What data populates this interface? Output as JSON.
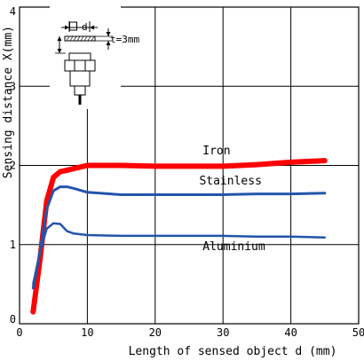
{
  "chart_data": {
    "type": "line",
    "title": "",
    "xlabel": "Length of sensed object d (mm)",
    "ylabel": "Sensing distance X(mm)",
    "xlim": [
      0,
      50
    ],
    "ylim": [
      0,
      4
    ],
    "xticks": [
      0,
      10,
      20,
      30,
      40,
      50
    ],
    "yticks": [
      0,
      1,
      2,
      3,
      4
    ],
    "xtick_labels": [
      "0",
      "10",
      "20",
      "30",
      "40",
      "50"
    ],
    "ytick_labels": [
      "0",
      "1",
      "2",
      "3",
      "4"
    ],
    "grid": true,
    "series": [
      {
        "name": "Iron",
        "color": "#ff0000",
        "points": [
          [
            2,
            0.15
          ],
          [
            3,
            0.8
          ],
          [
            4,
            1.55
          ],
          [
            5,
            1.85
          ],
          [
            6,
            1.92
          ],
          [
            7,
            1.94
          ],
          [
            8,
            1.96
          ],
          [
            10,
            2.0
          ],
          [
            15,
            2.0
          ],
          [
            20,
            1.99
          ],
          [
            25,
            1.99
          ],
          [
            30,
            1.99
          ],
          [
            35,
            2.01
          ],
          [
            40,
            2.04
          ],
          [
            45,
            2.06
          ]
        ]
      },
      {
        "name": "Stainless",
        "color": "#2255aa",
        "points": [
          [
            2,
            0.45
          ],
          [
            3,
            0.9
          ],
          [
            4,
            1.45
          ],
          [
            5,
            1.68
          ],
          [
            6,
            1.73
          ],
          [
            7,
            1.73
          ],
          [
            8,
            1.71
          ],
          [
            10,
            1.66
          ],
          [
            15,
            1.63
          ],
          [
            20,
            1.63
          ],
          [
            25,
            1.63
          ],
          [
            30,
            1.63
          ],
          [
            35,
            1.64
          ],
          [
            40,
            1.64
          ],
          [
            45,
            1.65
          ]
        ]
      },
      {
        "name": "Aluminium",
        "color": "#2255aa",
        "points": [
          [
            2,
            0.5
          ],
          [
            3,
            0.9
          ],
          [
            4,
            1.2
          ],
          [
            5,
            1.27
          ],
          [
            6,
            1.26
          ],
          [
            7,
            1.17
          ],
          [
            8,
            1.14
          ],
          [
            10,
            1.12
          ],
          [
            15,
            1.11
          ],
          [
            20,
            1.11
          ],
          [
            25,
            1.11
          ],
          [
            30,
            1.11
          ],
          [
            35,
            1.1
          ],
          [
            40,
            1.1
          ],
          [
            45,
            1.09
          ]
        ]
      }
    ]
  },
  "inset": {
    "d_label": "d",
    "t_label": "t=3mm"
  }
}
